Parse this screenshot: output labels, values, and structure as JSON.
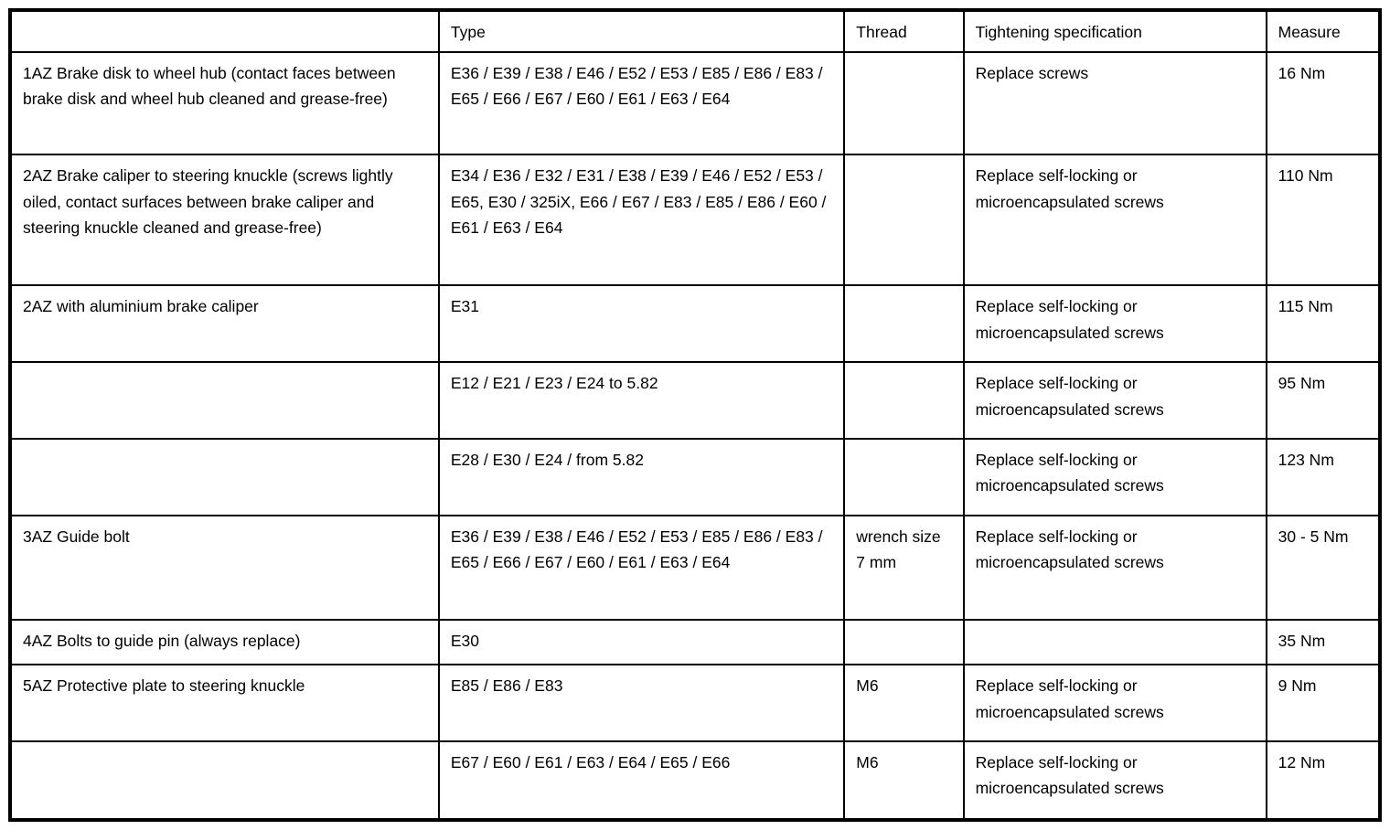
{
  "table": {
    "headers": {
      "item": "",
      "type": "Type",
      "thread": "Thread",
      "spec": "Tightening specification",
      "measure": "Measure"
    },
    "rows": [
      {
        "item": "1AZ  Brake disk to wheel hub (contact faces between brake disk and wheel hub cleaned and grease-free)",
        "type": "E36 / E39 / E38 / E46 / E52 / E53 / E85 / E86 / E83 / E65 / E66 / E67 / E60 / E61 / E63 / E64",
        "thread": "",
        "spec": "Replace screws",
        "measure": "16 Nm"
      },
      {
        "item": "2AZ  Brake caliper to steering knuckle (screws lightly oiled, contact surfaces between brake caliper and steering knuckle cleaned and grease-free)",
        "type": "E34 / E36 / E32 / E31 / E38 / E39 / E46 / E52 / E53 / E65, E30 / 325iX, E66 / E67 / E83 / E85 / E86 / E60 / E61 / E63 / E64",
        "thread": "",
        "spec": "Replace self-locking or microencapsulated screws",
        "measure": "110 Nm"
      },
      {
        "item": "2AZ  with aluminium brake caliper",
        "type": "E31",
        "thread": "",
        "spec": "Replace self-locking or microencapsulated screws",
        "measure": "115 Nm"
      },
      {
        "item": "",
        "type": "E12 / E21 / E23 / E24 to 5.82",
        "thread": "",
        "spec": "Replace self-locking or microencapsulated screws",
        "measure": "95 Nm"
      },
      {
        "item": "",
        "type": "E28 / E30 / E24 / from 5.82",
        "thread": "",
        "spec": "Replace self-locking or microencapsulated screws",
        "measure": "123 Nm"
      },
      {
        "item": "3AZ  Guide bolt",
        "type": "E36 / E39 / E38 / E46 / E52 / E53 / E85 / E86 / E83 / E65 / E66 / E67 / E60 / E61 / E63 / E64",
        "thread": "wrench size 7 mm",
        "spec": "Replace self-locking or microencapsulated screws",
        "measure": "30 - 5 Nm"
      },
      {
        "item": "4AZ  Bolts to guide pin (always replace)",
        "type": "E30",
        "thread": "",
        "spec": "",
        "measure": "35 Nm"
      },
      {
        "item": "5AZ  Protective plate to steering knuckle",
        "type": "E85 / E86 / E83",
        "thread": "M6",
        "spec": "Replace self-locking or microencapsulated screws",
        "measure": "9 Nm"
      },
      {
        "item": "",
        "type": "E67 / E60 / E61 / E63 / E64 / E65 / E66",
        "thread": "M6",
        "spec": "Replace self-locking or microencapsulated screws",
        "measure": "12 Nm"
      }
    ]
  }
}
